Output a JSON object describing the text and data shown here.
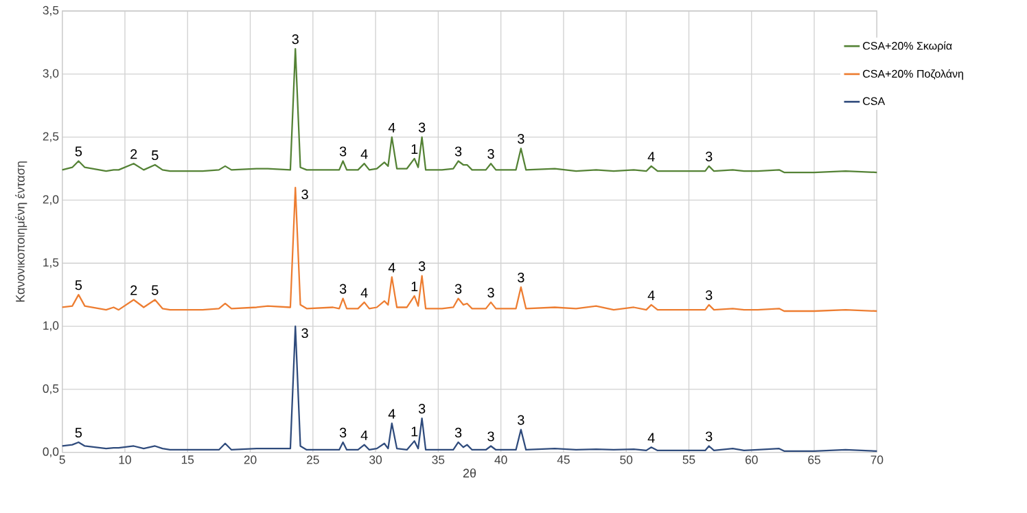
{
  "chart_data": {
    "type": "line",
    "xlabel": "2θ",
    "ylabel": "Κανονικοποιημένη ένταση",
    "x": [
      5,
      5.8,
      6.3,
      6.8,
      8.5,
      9.1,
      9.5,
      10.7,
      11.5,
      12.4,
      13.0,
      13.6,
      14.0,
      16.2,
      17.5,
      18.0,
      18.5,
      20.5,
      21.4,
      23.2,
      23.6,
      24.0,
      24.5,
      26.6,
      27.1,
      27.4,
      27.7,
      28.6,
      29.1,
      29.5,
      30.1,
      30.7,
      31.0,
      31.3,
      31.7,
      32.5,
      33.1,
      33.4,
      33.7,
      34.0,
      35.3,
      36.2,
      36.6,
      37.0,
      37.3,
      37.7,
      38.8,
      39.2,
      39.6,
      41.2,
      41.6,
      42.0,
      44.3,
      46.0,
      47.6,
      49.0,
      50.6,
      51.6,
      52.0,
      52.5,
      55.0,
      56.3,
      56.6,
      57.0,
      58.5,
      59.4,
      60.5,
      62.2,
      62.6,
      65.0,
      67.5,
      70
    ],
    "series": [
      {
        "name": "CSA+20% Σκωρία",
        "color": "#548235",
        "values": [
          2.24,
          2.26,
          2.31,
          2.26,
          2.23,
          2.24,
          2.24,
          2.29,
          2.24,
          2.28,
          2.24,
          2.23,
          2.23,
          2.23,
          2.24,
          2.27,
          2.24,
          2.25,
          2.25,
          2.24,
          3.2,
          2.26,
          2.24,
          2.24,
          2.24,
          2.31,
          2.24,
          2.24,
          2.29,
          2.24,
          2.25,
          2.3,
          2.27,
          2.5,
          2.25,
          2.25,
          2.33,
          2.26,
          2.5,
          2.24,
          2.24,
          2.25,
          2.31,
          2.28,
          2.28,
          2.24,
          2.24,
          2.29,
          2.24,
          2.24,
          2.41,
          2.24,
          2.25,
          2.23,
          2.24,
          2.23,
          2.24,
          2.23,
          2.27,
          2.23,
          2.23,
          2.23,
          2.27,
          2.23,
          2.24,
          2.23,
          2.23,
          2.24,
          2.22,
          2.22,
          2.23,
          2.22
        ]
      },
      {
        "name": "CSA+20% Ποζολάνη",
        "color": "#ed7d31",
        "values": [
          1.15,
          1.16,
          1.25,
          1.16,
          1.13,
          1.15,
          1.13,
          1.21,
          1.15,
          1.21,
          1.14,
          1.13,
          1.13,
          1.13,
          1.14,
          1.18,
          1.14,
          1.15,
          1.16,
          1.15,
          2.1,
          1.17,
          1.14,
          1.15,
          1.14,
          1.22,
          1.14,
          1.14,
          1.19,
          1.14,
          1.15,
          1.2,
          1.17,
          1.39,
          1.15,
          1.15,
          1.24,
          1.16,
          1.4,
          1.14,
          1.14,
          1.15,
          1.22,
          1.17,
          1.18,
          1.14,
          1.14,
          1.19,
          1.14,
          1.14,
          1.31,
          1.14,
          1.15,
          1.14,
          1.16,
          1.13,
          1.15,
          1.13,
          1.17,
          1.13,
          1.13,
          1.13,
          1.17,
          1.13,
          1.14,
          1.13,
          1.13,
          1.14,
          1.12,
          1.12,
          1.13,
          1.12
        ]
      },
      {
        "name": "CSA",
        "color": "#2f4b7c",
        "values": [
          0.05,
          0.06,
          0.08,
          0.05,
          0.03,
          0.035,
          0.035,
          0.05,
          0.03,
          0.05,
          0.03,
          0.02,
          0.02,
          0.02,
          0.02,
          0.07,
          0.02,
          0.03,
          0.03,
          0.03,
          1.0,
          0.05,
          0.02,
          0.02,
          0.02,
          0.08,
          0.02,
          0.02,
          0.06,
          0.02,
          0.03,
          0.07,
          0.03,
          0.23,
          0.03,
          0.02,
          0.09,
          0.03,
          0.27,
          0.02,
          0.02,
          0.02,
          0.08,
          0.04,
          0.06,
          0.02,
          0.02,
          0.05,
          0.02,
          0.02,
          0.18,
          0.02,
          0.03,
          0.02,
          0.025,
          0.02,
          0.025,
          0.015,
          0.04,
          0.015,
          0.015,
          0.015,
          0.05,
          0.015,
          0.03,
          0.015,
          0.02,
          0.03,
          0.01,
          0.01,
          0.02,
          0.01
        ]
      }
    ],
    "xlim": [
      5,
      70
    ],
    "xticks": [
      5,
      10,
      15,
      20,
      25,
      30,
      35,
      40,
      45,
      50,
      55,
      60,
      65,
      70
    ],
    "ylim": [
      0,
      3.5
    ],
    "yticks": [
      {
        "value": 0,
        "label": "0,0"
      },
      {
        "value": 0.5,
        "label": "0,5"
      },
      {
        "value": 1,
        "label": "1,0"
      },
      {
        "value": 1.5,
        "label": "1,5"
      },
      {
        "value": 2,
        "label": "2,0"
      },
      {
        "value": 2.5,
        "label": "2,5"
      },
      {
        "value": 3,
        "label": "3,0"
      },
      {
        "value": 3.5,
        "label": "3,5"
      }
    ],
    "grid": true,
    "legend": "top right",
    "line_style": "solid",
    "annotations": [
      {
        "text": "5",
        "x": 6.3,
        "y": 2.31
      },
      {
        "text": "2",
        "x": 10.7,
        "y": 2.29
      },
      {
        "text": "5",
        "x": 12.4,
        "y": 2.28
      },
      {
        "text": "3",
        "x": 23.6,
        "y": 3.2
      },
      {
        "text": "3",
        "x": 27.4,
        "y": 2.31
      },
      {
        "text": "4",
        "x": 29.1,
        "y": 2.29
      },
      {
        "text": "4",
        "x": 31.3,
        "y": 2.5
      },
      {
        "text": "1",
        "x": 33.1,
        "y": 2.33
      },
      {
        "text": "3",
        "x": 33.7,
        "y": 2.5
      },
      {
        "text": "3",
        "x": 36.6,
        "y": 2.31
      },
      {
        "text": "3",
        "x": 39.2,
        "y": 2.29
      },
      {
        "text": "3",
        "x": 41.6,
        "y": 2.41
      },
      {
        "text": "4",
        "x": 52.0,
        "y": 2.27
      },
      {
        "text": "3",
        "x": 56.6,
        "y": 2.27
      },
      {
        "text": "5",
        "x": 6.3,
        "y": 1.25
      },
      {
        "text": "2",
        "x": 10.7,
        "y": 1.21
      },
      {
        "text": "5",
        "x": 12.4,
        "y": 1.21
      },
      {
        "text": "3",
        "x": 23.6,
        "y": 2.1
      },
      {
        "text": "3",
        "x": 27.4,
        "y": 1.22
      },
      {
        "text": "4",
        "x": 29.1,
        "y": 1.19
      },
      {
        "text": "4",
        "x": 31.3,
        "y": 1.39
      },
      {
        "text": "1",
        "x": 33.1,
        "y": 1.24
      },
      {
        "text": "3",
        "x": 33.7,
        "y": 1.4
      },
      {
        "text": "3",
        "x": 36.6,
        "y": 1.22
      },
      {
        "text": "3",
        "x": 39.2,
        "y": 1.19
      },
      {
        "text": "3",
        "x": 41.6,
        "y": 1.31
      },
      {
        "text": "4",
        "x": 52.0,
        "y": 1.17
      },
      {
        "text": "3",
        "x": 56.6,
        "y": 1.17
      },
      {
        "text": "5",
        "x": 6.3,
        "y": 0.08
      },
      {
        "text": "3",
        "x": 23.6,
        "y": 1.0
      },
      {
        "text": "3",
        "x": 27.4,
        "y": 0.08
      },
      {
        "text": "4",
        "x": 29.1,
        "y": 0.06
      },
      {
        "text": "4",
        "x": 31.3,
        "y": 0.23
      },
      {
        "text": "1",
        "x": 33.1,
        "y": 0.09
      },
      {
        "text": "3",
        "x": 33.7,
        "y": 0.27
      },
      {
        "text": "3",
        "x": 36.6,
        "y": 0.08
      },
      {
        "text": "3",
        "x": 39.2,
        "y": 0.05
      },
      {
        "text": "3",
        "x": 41.6,
        "y": 0.18
      },
      {
        "text": "4",
        "x": 52.0,
        "y": 0.04
      },
      {
        "text": "3",
        "x": 56.6,
        "y": 0.05
      }
    ]
  }
}
